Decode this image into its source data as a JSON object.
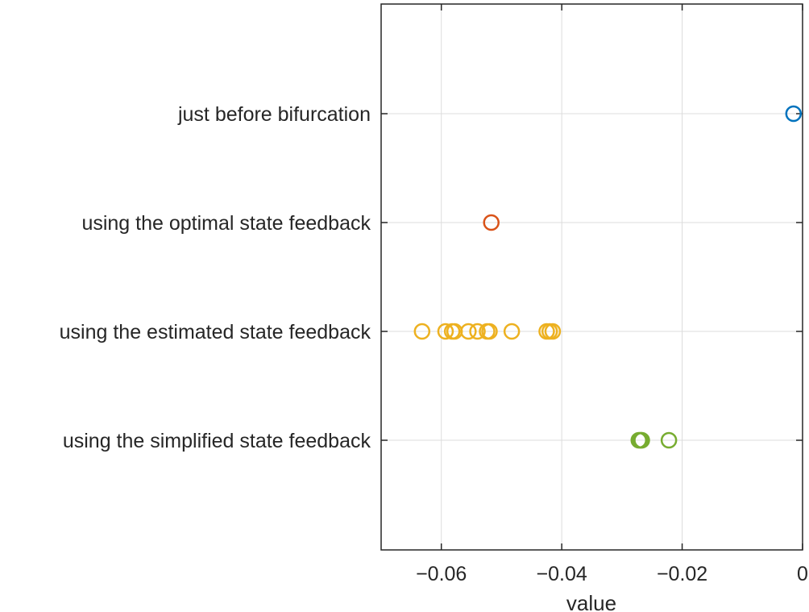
{
  "chart_data": {
    "type": "scatter",
    "title": "",
    "xlabel": "value",
    "ylabel": "",
    "xlim": [
      -0.07,
      0.0
    ],
    "xticks": [
      -0.06,
      -0.04,
      -0.02,
      0
    ],
    "xtick_labels": [
      "−0.06",
      "−0.04",
      "−0.02",
      "0"
    ],
    "grid": true,
    "categories": [
      "just before bifurcation",
      "using the optimal state feedback",
      "using the estimated state feedback",
      "using the simplified state feedback"
    ],
    "series": [
      {
        "category": "just before bifurcation",
        "color": "#0072BD",
        "x": [
          -0.0015
        ]
      },
      {
        "category": "using the optimal state feedback",
        "color": "#D95319",
        "x": [
          -0.0517
        ]
      },
      {
        "category": "using the estimated state feedback",
        "color": "#EDB120",
        "x": [
          -0.0632,
          -0.0593,
          -0.0582,
          -0.0578,
          -0.0555,
          -0.054,
          -0.0524,
          -0.052,
          -0.0483,
          -0.0425,
          -0.042,
          -0.0415
        ]
      },
      {
        "category": "using the simplified state feedback",
        "color": "#77AC30",
        "x": [
          -0.0272,
          -0.027,
          -0.0268,
          -0.0267,
          -0.0222
        ]
      }
    ]
  }
}
